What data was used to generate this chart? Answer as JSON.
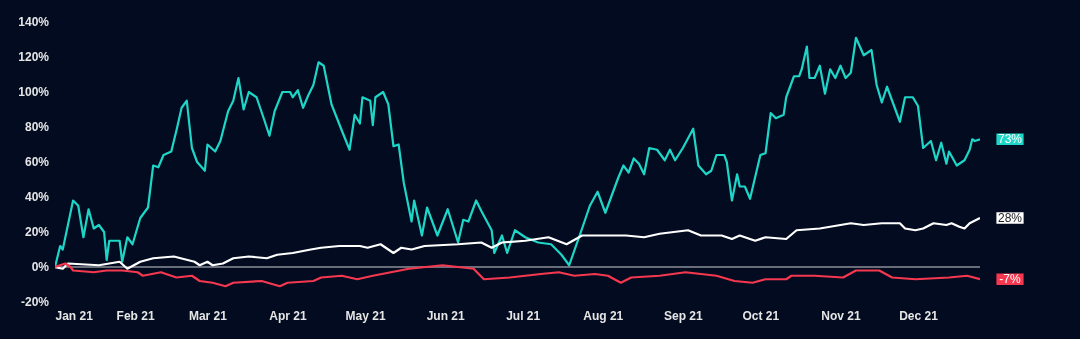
{
  "chart_data": {
    "type": "line",
    "xlim": [
      "2021-01-01",
      "2021-12-25"
    ],
    "xticks": [
      {
        "value": "2021-01-01",
        "label": "Jan 21"
      },
      {
        "value": "2021-02-01",
        "label": "Feb 21"
      },
      {
        "value": "2021-03-01",
        "label": "Mar 21"
      },
      {
        "value": "2021-04-01",
        "label": "Apr 21"
      },
      {
        "value": "2021-05-01",
        "label": "May 21"
      },
      {
        "value": "2021-06-01",
        "label": "Jun 21"
      },
      {
        "value": "2021-07-01",
        "label": "Jul 21"
      },
      {
        "value": "2021-08-01",
        "label": "Aug 21"
      },
      {
        "value": "2021-09-01",
        "label": "Sep 21"
      },
      {
        "value": "2021-10-01",
        "label": "Oct 21"
      },
      {
        "value": "2021-11-01",
        "label": "Nov 21"
      },
      {
        "value": "2021-12-01",
        "label": "Dec 21"
      }
    ],
    "ylim": [
      -20,
      140
    ],
    "yticks": [
      {
        "value": -20,
        "label": "-20%"
      },
      {
        "value": 0,
        "label": "0%"
      },
      {
        "value": 20,
        "label": "20%"
      },
      {
        "value": 40,
        "label": "40%"
      },
      {
        "value": 60,
        "label": "60%"
      },
      {
        "value": 80,
        "label": "80%"
      },
      {
        "value": 100,
        "label": "100%"
      },
      {
        "value": 120,
        "label": "120%"
      },
      {
        "value": 140,
        "label": "140%"
      }
    ],
    "ref_lines": [
      {
        "axis": "y",
        "value": 0,
        "color": "#8a8f99"
      }
    ],
    "series": [
      {
        "color": "#1ed6c8",
        "x": [
          "2021-01-01",
          "2021-01-03",
          "2021-01-04",
          "2021-01-08",
          "2021-01-10",
          "2021-01-12",
          "2021-01-14",
          "2021-01-16",
          "2021-01-18",
          "2021-01-20",
          "2021-01-21",
          "2021-01-22",
          "2021-01-26",
          "2021-01-27",
          "2021-01-29",
          "2021-01-31",
          "2021-02-03",
          "2021-02-06",
          "2021-02-08",
          "2021-02-10",
          "2021-02-12",
          "2021-02-15",
          "2021-02-17",
          "2021-02-19",
          "2021-02-21",
          "2021-02-23",
          "2021-02-25",
          "2021-02-28",
          "2021-03-01",
          "2021-03-04",
          "2021-03-06",
          "2021-03-09",
          "2021-03-11",
          "2021-03-13",
          "2021-03-15",
          "2021-03-17",
          "2021-03-20",
          "2021-03-23",
          "2021-03-25",
          "2021-03-27",
          "2021-03-30",
          "2021-04-02",
          "2021-04-03",
          "2021-04-05",
          "2021-04-07",
          "2021-04-09",
          "2021-04-11",
          "2021-04-13",
          "2021-04-15",
          "2021-04-18",
          "2021-04-22",
          "2021-04-25",
          "2021-04-27",
          "2021-04-29",
          "2021-04-30",
          "2021-05-03",
          "2021-05-04",
          "2021-05-05",
          "2021-05-08",
          "2021-05-10",
          "2021-05-12",
          "2021-05-14",
          "2021-05-16",
          "2021-05-19",
          "2021-05-20",
          "2021-05-23",
          "2021-05-25",
          "2021-05-29",
          "2021-06-02",
          "2021-06-06",
          "2021-06-08",
          "2021-06-10",
          "2021-06-13",
          "2021-06-15",
          "2021-06-19",
          "2021-06-20",
          "2021-06-23",
          "2021-06-25",
          "2021-06-28",
          "2021-07-02",
          "2021-07-07",
          "2021-07-12",
          "2021-07-16",
          "2021-07-19",
          "2021-07-24",
          "2021-07-27",
          "2021-07-30",
          "2021-08-02",
          "2021-08-07",
          "2021-08-09",
          "2021-08-11",
          "2021-08-13",
          "2021-08-15",
          "2021-08-17",
          "2021-08-19",
          "2021-08-22",
          "2021-08-25",
          "2021-08-27",
          "2021-08-29",
          "2021-09-01",
          "2021-09-05",
          "2021-09-07",
          "2021-09-10",
          "2021-09-12",
          "2021-09-14",
          "2021-09-17",
          "2021-09-18",
          "2021-09-20",
          "2021-09-22",
          "2021-09-23",
          "2021-09-25",
          "2021-09-27",
          "2021-10-01",
          "2021-10-03",
          "2021-10-05",
          "2021-10-07",
          "2021-10-10",
          "2021-10-11",
          "2021-10-14",
          "2021-10-16",
          "2021-10-17",
          "2021-10-19",
          "2021-10-20",
          "2021-10-22",
          "2021-10-24",
          "2021-10-26",
          "2021-10-28",
          "2021-10-30",
          "2021-11-01",
          "2021-11-03",
          "2021-11-05",
          "2021-11-07",
          "2021-11-10",
          "2021-11-13",
          "2021-11-15",
          "2021-11-17",
          "2021-11-19",
          "2021-11-21",
          "2021-11-24",
          "2021-11-26",
          "2021-11-29",
          "2021-12-01",
          "2021-12-03",
          "2021-12-06",
          "2021-12-08",
          "2021-12-10",
          "2021-12-12",
          "2021-12-13",
          "2021-12-16",
          "2021-12-19",
          "2021-12-21",
          "2021-12-22",
          "2021-12-23",
          "2021-12-25"
        ],
        "values": [
          0,
          12,
          10,
          38,
          35,
          17,
          33,
          22,
          24,
          20,
          4,
          15,
          15,
          3,
          17,
          13,
          28,
          34,
          58,
          57,
          64,
          66,
          78,
          91,
          95,
          68,
          60,
          55,
          70,
          66,
          72,
          89,
          95,
          108,
          90,
          100,
          97,
          84,
          75,
          89,
          100,
          100,
          97,
          101,
          91,
          98,
          104,
          117,
          115,
          93,
          78,
          67,
          87,
          82,
          97,
          95,
          81,
          97,
          100,
          93,
          69,
          70,
          48,
          26,
          38,
          18,
          34,
          18,
          33,
          14,
          27,
          26,
          38,
          32,
          21,
          8,
          18,
          8,
          21,
          17,
          14,
          13,
          7,
          1,
          22,
          35,
          43,
          31,
          51,
          58,
          54,
          62,
          59,
          53,
          68,
          67,
          61,
          67,
          61,
          68,
          79,
          58,
          53,
          55,
          64,
          64,
          60,
          38,
          53,
          46,
          46,
          39,
          64,
          65,
          88,
          85,
          87,
          97,
          109,
          109,
          113,
          126,
          108,
          108,
          115,
          99,
          113,
          108,
          115,
          108,
          111,
          131,
          121,
          124,
          104,
          94,
          103,
          95,
          83,
          97,
          97,
          92,
          68,
          72,
          61,
          71,
          59,
          66,
          58,
          61,
          67,
          73,
          72,
          73
        ],
        "value_labels": [
          null,
          null,
          null,
          null,
          null,
          null,
          null,
          null,
          null,
          null,
          null,
          null,
          null,
          null,
          null,
          null,
          null,
          null,
          null,
          null,
          null,
          null,
          null,
          null,
          null,
          null,
          null,
          null,
          null,
          null,
          null,
          null,
          null,
          null,
          null,
          null,
          null,
          null,
          null,
          null,
          null,
          null,
          null,
          null,
          null,
          null,
          null,
          null,
          null,
          null,
          null,
          null,
          null,
          null,
          null,
          null,
          null,
          null,
          null,
          null,
          null,
          null,
          null,
          null,
          null,
          null,
          null,
          null,
          null,
          null,
          null,
          null,
          null,
          null,
          null,
          null,
          null,
          null,
          null,
          null,
          null,
          null,
          null,
          null,
          null,
          null,
          null,
          null,
          null,
          null,
          null,
          null,
          null,
          null,
          null,
          null,
          null,
          null,
          null,
          null,
          null,
          null,
          null,
          null,
          null,
          null,
          null,
          null,
          null,
          null,
          null,
          null,
          null,
          null,
          null,
          null,
          null,
          null,
          null,
          null,
          null,
          null,
          null,
          null,
          null,
          null,
          null,
          null,
          null,
          null,
          null,
          null,
          null,
          null,
          null,
          null,
          null,
          null,
          null,
          null,
          null,
          null,
          null,
          null,
          null,
          null,
          null,
          null,
          null,
          null,
          null,
          null,
          null,
          "73%"
        ]
      },
      {
        "color": "#ffffff",
        "x": [
          "2021-01-01",
          "2021-01-04",
          "2021-01-06",
          "2021-01-18",
          "2021-01-22",
          "2021-01-26",
          "2021-01-29",
          "2021-02-03",
          "2021-02-08",
          "2021-02-16",
          "2021-02-24",
          "2021-02-26",
          "2021-03-01",
          "2021-03-03",
          "2021-03-07",
          "2021-03-11",
          "2021-03-17",
          "2021-03-24",
          "2021-03-28",
          "2021-04-03",
          "2021-04-10",
          "2021-04-14",
          "2021-04-21",
          "2021-04-29",
          "2021-05-02",
          "2021-05-07",
          "2021-05-12",
          "2021-05-15",
          "2021-05-19",
          "2021-05-24",
          "2021-06-06",
          "2021-06-15",
          "2021-06-19",
          "2021-06-23",
          "2021-07-02",
          "2021-07-11",
          "2021-07-18",
          "2021-07-24",
          "2021-08-01",
          "2021-08-10",
          "2021-08-17",
          "2021-08-23",
          "2021-09-03",
          "2021-09-08",
          "2021-09-16",
          "2021-09-20",
          "2021-09-23",
          "2021-09-29",
          "2021-10-03",
          "2021-10-11",
          "2021-10-15",
          "2021-10-24",
          "2021-10-28",
          "2021-11-05",
          "2021-11-10",
          "2021-11-17",
          "2021-11-24",
          "2021-11-26",
          "2021-11-30",
          "2021-12-03",
          "2021-12-07",
          "2021-12-12",
          "2021-12-14",
          "2021-12-17",
          "2021-12-19",
          "2021-12-21",
          "2021-12-25"
        ],
        "values": [
          0,
          -1,
          2,
          1,
          2,
          3,
          -1,
          3,
          5,
          6,
          3,
          1,
          3,
          1,
          2,
          5,
          6,
          5,
          7,
          8,
          10,
          11,
          12,
          12,
          11,
          13,
          8,
          11,
          10,
          12,
          13,
          14,
          11,
          14,
          15,
          17,
          13,
          18,
          18,
          18,
          17,
          19,
          21,
          18,
          18,
          16,
          18,
          15,
          17,
          16,
          21,
          22,
          23,
          25,
          24,
          25,
          25,
          22,
          21,
          22,
          25,
          24,
          25,
          23,
          22,
          25,
          28
        ],
        "value_labels": [
          null,
          null,
          null,
          null,
          null,
          null,
          null,
          null,
          null,
          null,
          null,
          null,
          null,
          null,
          null,
          null,
          null,
          null,
          null,
          null,
          null,
          null,
          null,
          null,
          null,
          null,
          null,
          null,
          null,
          null,
          null,
          null,
          null,
          null,
          null,
          null,
          null,
          null,
          null,
          null,
          null,
          null,
          null,
          null,
          null,
          null,
          null,
          null,
          null,
          null,
          null,
          null,
          null,
          null,
          null,
          null,
          null,
          null,
          null,
          null,
          null,
          null,
          null,
          null,
          null,
          null,
          "28%"
        ]
      },
      {
        "color": "#f5384f",
        "x": [
          "2021-01-01",
          "2021-01-05",
          "2021-01-07",
          "2021-01-08",
          "2021-01-16",
          "2021-01-21",
          "2021-01-27",
          "2021-02-02",
          "2021-02-04",
          "2021-02-11",
          "2021-02-17",
          "2021-02-23",
          "2021-02-26",
          "2021-03-03",
          "2021-03-08",
          "2021-03-11",
          "2021-03-22",
          "2021-03-29",
          "2021-04-01",
          "2021-04-11",
          "2021-04-14",
          "2021-04-22",
          "2021-04-28",
          "2021-05-04",
          "2021-05-11",
          "2021-05-18",
          "2021-05-31",
          "2021-06-12",
          "2021-06-16",
          "2021-06-26",
          "2021-07-08",
          "2021-07-15",
          "2021-07-21",
          "2021-07-29",
          "2021-08-03",
          "2021-08-08",
          "2021-08-12",
          "2021-08-23",
          "2021-09-02",
          "2021-09-14",
          "2021-09-21",
          "2021-09-28",
          "2021-10-03",
          "2021-10-11",
          "2021-10-13",
          "2021-10-22",
          "2021-11-02",
          "2021-11-07",
          "2021-11-16",
          "2021-11-21",
          "2021-11-30",
          "2021-12-13",
          "2021-12-20",
          "2021-12-25"
        ],
        "values": [
          0,
          2,
          0,
          -2,
          -3,
          -2,
          -2,
          -3,
          -5,
          -3,
          -6,
          -5,
          -8,
          -9,
          -11,
          -9,
          -8,
          -11,
          -9,
          -8,
          -6,
          -5,
          -7,
          -5,
          -3,
          -1,
          1,
          -1,
          -7,
          -6,
          -4,
          -3,
          -5,
          -4,
          -5,
          -9,
          -6,
          -5,
          -3,
          -5,
          -8,
          -9,
          -7,
          -7,
          -5,
          -5,
          -6,
          -2,
          -2,
          -6,
          -7,
          -6,
          -5,
          -7
        ],
        "value_labels": [
          null,
          null,
          null,
          null,
          null,
          null,
          null,
          null,
          null,
          null,
          null,
          null,
          null,
          null,
          null,
          null,
          null,
          null,
          null,
          null,
          null,
          null,
          null,
          null,
          null,
          null,
          null,
          null,
          null,
          null,
          null,
          null,
          null,
          null,
          null,
          null,
          null,
          null,
          null,
          null,
          null,
          null,
          null,
          null,
          null,
          null,
          null,
          null,
          null,
          null,
          null,
          null,
          null,
          "-7%"
        ]
      }
    ]
  }
}
